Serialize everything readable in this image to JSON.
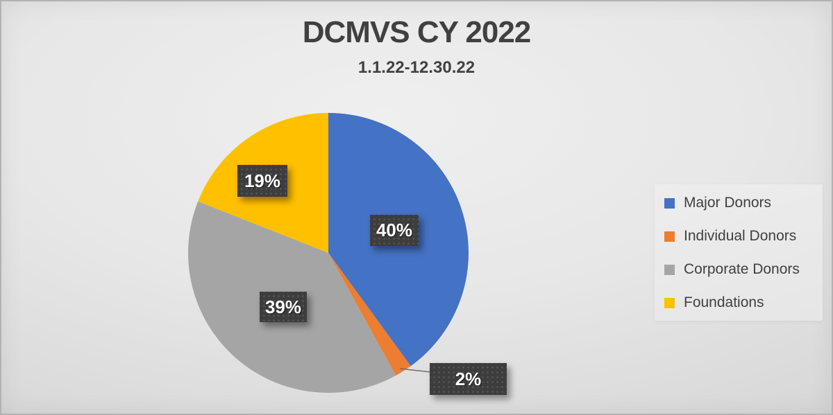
{
  "chart_data": {
    "type": "pie",
    "title": "DCMVS CY 2022",
    "subtitle": "1.1.22-12.30.22",
    "categories": [
      "Major Donors",
      "Individual Donors",
      "Corporate Donors",
      "Foundations"
    ],
    "values": [
      40,
      2,
      39,
      19
    ],
    "labels": [
      "40%",
      "2%",
      "39%",
      "19%"
    ],
    "colors": [
      "#4472C4",
      "#ED7D31",
      "#A5A5A5",
      "#FFC000"
    ],
    "start_angle_deg": 0,
    "direction": "clockwise",
    "legend_position": "right",
    "title_color": "#404040",
    "legend_text_color": "#404040",
    "label_box_color": "#3d3d3d",
    "label_text_color": "#ffffff",
    "leader_line_color": "#6e6e6e",
    "callout_slice": "Individual Donors"
  }
}
